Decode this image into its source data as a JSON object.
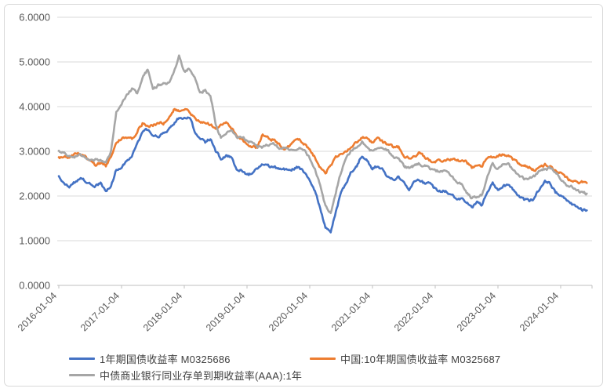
{
  "chart_data": {
    "type": "line",
    "title": "",
    "xlabel": "",
    "ylabel": "",
    "ylim": [
      0,
      6
    ],
    "grid": "horizontal",
    "legend_position": "bottom",
    "y_tick_labels": [
      "0.0000",
      "1.0000",
      "2.0000",
      "3.0000",
      "4.0000",
      "5.0000",
      "6.0000"
    ],
    "x_tick_labels": [
      "2016-01-04",
      "2017-01-04",
      "2018-01-04",
      "2019-01-04",
      "2020-01-04",
      "2021-01-04",
      "2022-01-04",
      "2023-01-04",
      "2024-01-04"
    ],
    "x_unit": "month",
    "x_months": [
      "2016-01",
      "2016-02",
      "2016-03",
      "2016-04",
      "2016-05",
      "2016-06",
      "2016-07",
      "2016-08",
      "2016-09",
      "2016-10",
      "2016-11",
      "2016-12",
      "2017-01",
      "2017-02",
      "2017-03",
      "2017-04",
      "2017-05",
      "2017-06",
      "2017-07",
      "2017-08",
      "2017-09",
      "2017-10",
      "2017-11",
      "2017-12",
      "2018-01",
      "2018-02",
      "2018-03",
      "2018-04",
      "2018-05",
      "2018-06",
      "2018-07",
      "2018-08",
      "2018-09",
      "2018-10",
      "2018-11",
      "2018-12",
      "2019-01",
      "2019-02",
      "2019-03",
      "2019-04",
      "2019-05",
      "2019-06",
      "2019-07",
      "2019-08",
      "2019-09",
      "2019-10",
      "2019-11",
      "2019-12",
      "2020-01",
      "2020-02",
      "2020-03",
      "2020-04",
      "2020-05",
      "2020-06",
      "2020-07",
      "2020-08",
      "2020-09",
      "2020-10",
      "2020-11",
      "2020-12",
      "2021-01",
      "2021-02",
      "2021-03",
      "2021-04",
      "2021-05",
      "2021-06",
      "2021-07",
      "2021-08",
      "2021-09",
      "2021-10",
      "2021-11",
      "2021-12",
      "2022-01",
      "2022-02",
      "2022-03",
      "2022-04",
      "2022-05",
      "2022-06",
      "2022-07",
      "2022-08",
      "2022-09",
      "2022-10",
      "2022-11",
      "2022-12",
      "2023-01",
      "2023-02",
      "2023-03",
      "2023-04",
      "2023-05",
      "2023-06",
      "2023-07",
      "2023-08",
      "2023-09",
      "2023-10",
      "2023-11",
      "2023-12",
      "2024-01",
      "2024-02",
      "2024-03",
      "2024-04",
      "2024-05",
      "2024-06"
    ],
    "series": [
      {
        "name": "1年期国债收益率 M0325686",
        "color": "#4472C4",
        "values": [
          2.45,
          2.28,
          2.2,
          2.3,
          2.4,
          2.35,
          2.28,
          2.22,
          2.28,
          2.1,
          2.22,
          2.6,
          2.65,
          2.8,
          2.9,
          3.15,
          3.45,
          3.5,
          3.35,
          3.32,
          3.42,
          3.5,
          3.62,
          3.75,
          3.72,
          3.78,
          3.45,
          3.3,
          3.2,
          3.28,
          3.0,
          2.85,
          2.9,
          2.85,
          2.62,
          2.58,
          2.45,
          2.52,
          2.62,
          2.72,
          2.68,
          2.65,
          2.62,
          2.6,
          2.58,
          2.62,
          2.66,
          2.5,
          2.35,
          2.1,
          1.75,
          1.3,
          1.22,
          1.65,
          2.1,
          2.3,
          2.55,
          2.68,
          2.92,
          2.8,
          2.6,
          2.68,
          2.58,
          2.42,
          2.35,
          2.42,
          2.28,
          2.15,
          2.3,
          2.36,
          2.28,
          2.3,
          2.15,
          2.1,
          2.12,
          2.02,
          1.95,
          1.95,
          1.88,
          1.75,
          1.85,
          1.78,
          2.1,
          2.28,
          2.15,
          2.22,
          2.25,
          2.12,
          1.98,
          1.92,
          1.88,
          1.95,
          2.18,
          2.32,
          2.28,
          2.08,
          2.02,
          1.9,
          1.82,
          1.76,
          1.7,
          1.66
        ]
      },
      {
        "name": "中国:10年期国债收益率 M0325687",
        "color": "#ED7D31",
        "values": [
          2.85,
          2.88,
          2.85,
          2.92,
          2.95,
          2.88,
          2.78,
          2.7,
          2.74,
          2.68,
          2.86,
          3.2,
          3.28,
          3.32,
          3.28,
          3.45,
          3.62,
          3.56,
          3.58,
          3.62,
          3.62,
          3.72,
          3.92,
          3.9,
          3.95,
          3.88,
          3.74,
          3.64,
          3.66,
          3.6,
          3.52,
          3.58,
          3.64,
          3.52,
          3.38,
          3.28,
          3.14,
          3.1,
          3.08,
          3.38,
          3.3,
          3.26,
          3.16,
          3.04,
          3.12,
          3.22,
          3.26,
          3.16,
          3.04,
          2.86,
          2.64,
          2.52,
          2.68,
          2.86,
          2.96,
          3.02,
          3.12,
          3.2,
          3.32,
          3.28,
          3.18,
          3.28,
          3.2,
          3.16,
          3.1,
          3.1,
          2.88,
          2.85,
          2.88,
          2.98,
          2.88,
          2.8,
          2.75,
          2.8,
          2.8,
          2.82,
          2.78,
          2.8,
          2.76,
          2.64,
          2.7,
          2.68,
          2.85,
          2.88,
          2.9,
          2.92,
          2.88,
          2.8,
          2.72,
          2.66,
          2.64,
          2.58,
          2.66,
          2.7,
          2.66,
          2.56,
          2.5,
          2.42,
          2.32,
          2.3,
          2.32,
          2.28
        ]
      },
      {
        "name": "中债商业银行同业存单到期收益率(AAA):1年",
        "color": "#A6A6A6",
        "values": [
          3.02,
          2.95,
          2.88,
          2.88,
          2.92,
          2.88,
          2.78,
          2.82,
          2.78,
          2.78,
          3.0,
          3.88,
          4.05,
          4.25,
          4.4,
          4.28,
          4.65,
          4.82,
          4.4,
          4.48,
          4.5,
          4.52,
          4.78,
          5.15,
          4.78,
          4.85,
          4.68,
          4.3,
          4.38,
          4.25,
          3.6,
          3.32,
          3.42,
          3.45,
          3.32,
          3.3,
          3.25,
          3.18,
          3.08,
          3.1,
          3.15,
          3.18,
          3.08,
          3.05,
          3.05,
          3.05,
          3.1,
          3.02,
          2.85,
          2.62,
          2.25,
          1.78,
          1.62,
          2.1,
          2.55,
          2.88,
          3.02,
          3.1,
          3.22,
          3.1,
          2.98,
          3.08,
          3.1,
          3.02,
          2.88,
          2.85,
          2.68,
          2.62,
          2.68,
          2.72,
          2.68,
          2.6,
          2.58,
          2.55,
          2.55,
          2.48,
          2.32,
          2.28,
          2.08,
          1.95,
          2.0,
          2.02,
          2.45,
          2.72,
          2.62,
          2.72,
          2.7,
          2.58,
          2.45,
          2.38,
          2.38,
          2.44,
          2.58,
          2.6,
          2.62,
          2.55,
          2.38,
          2.24,
          2.22,
          2.12,
          2.08,
          2.05
        ]
      }
    ]
  },
  "style_colors": {
    "gridline": "#d9d9d9",
    "axis_line": "#bfbfbf",
    "tick_label": "#595959",
    "frame_border": "#d9d9d9",
    "legend_text": "#404040"
  }
}
